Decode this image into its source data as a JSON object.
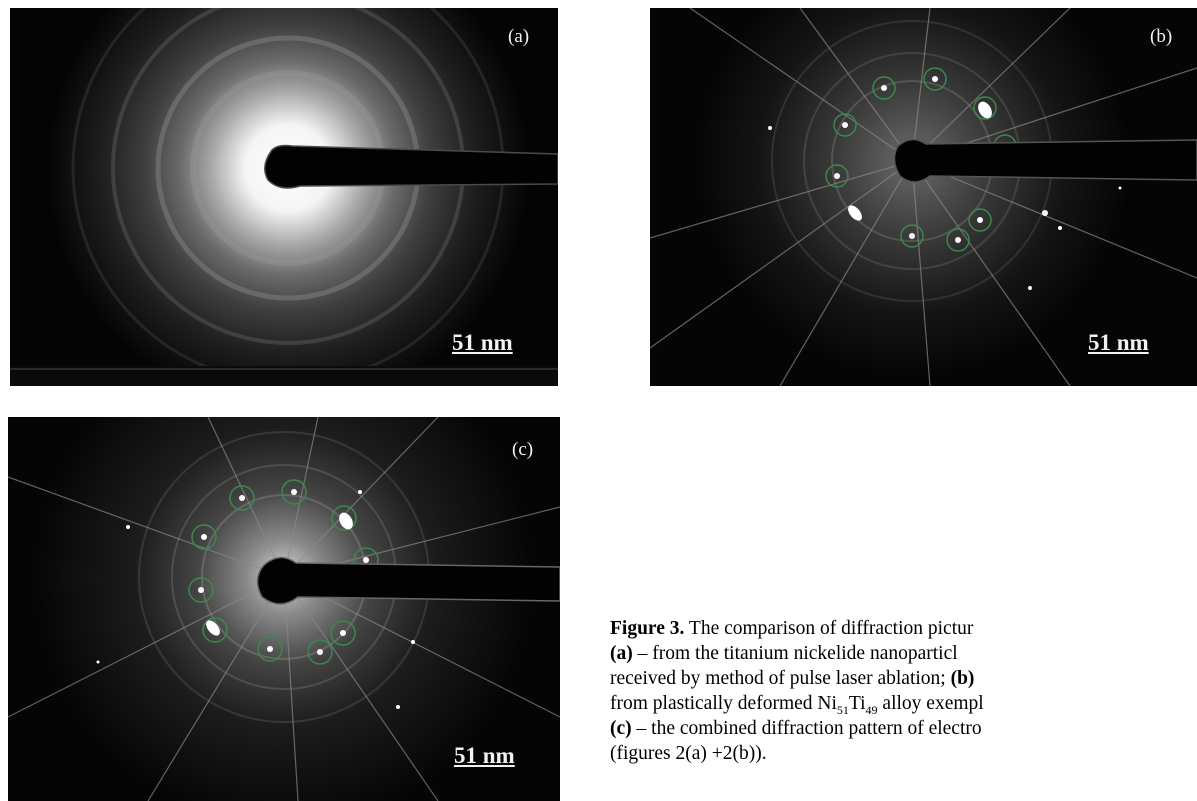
{
  "panels": [
    {
      "label": "(a)",
      "scale": "51 nm"
    },
    {
      "label": "(b)",
      "scale": "51 nm"
    },
    {
      "label": "(c)",
      "scale": "51 nm"
    }
  ],
  "caption": {
    "figure_label": "Figure 3.",
    "line1_text": " The comparison of diffraction pictur",
    "a_label": "(a)",
    "line2_text": " – from the titanium nickelide nanoparticl",
    "line3_text": "received by method of pulse laser ablation; ",
    "b_label": "(b)",
    "line4_pre": "from plastically deformed Ni",
    "sub1": "51",
    "line4_mid": "Ti",
    "sub2": "49",
    "line4_post": " alloy exempl",
    "c_label": "(c)",
    "line5_text": " – the combined diffraction pattern of electro",
    "line6_text": "(figures 2(a) +2(b))."
  }
}
